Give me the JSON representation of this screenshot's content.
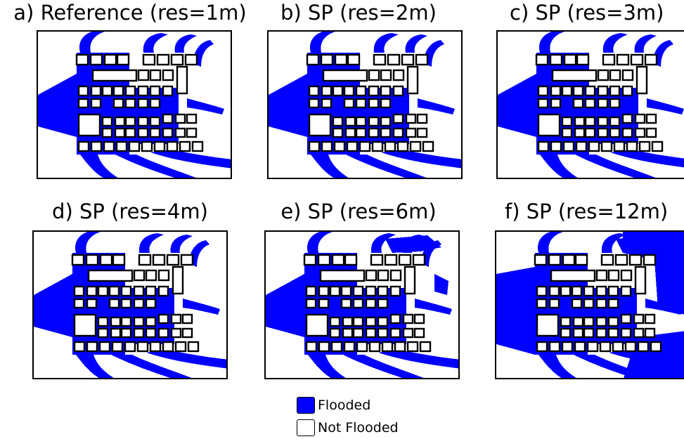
{
  "panels": [
    {
      "title": "a) Reference (res=1m)",
      "res": 1
    },
    {
      "title": "b) SP (res=2m)",
      "res": 2
    },
    {
      "title": "c) SP (res=3m)",
      "res": 3
    },
    {
      "title": "d) SP (res=4m)",
      "res": 4
    },
    {
      "title": "e) SP (res=6m)",
      "res": 6
    },
    {
      "title": "f) SP (res=12m)",
      "res": 12
    }
  ],
  "legend": {
    "flooded_label": "Flooded",
    "not_flooded_label": "Not Flooded"
  },
  "colors": {
    "flooded": "#0000ff",
    "not_flooded": "#ffffff",
    "building_outline": "#000000"
  }
}
